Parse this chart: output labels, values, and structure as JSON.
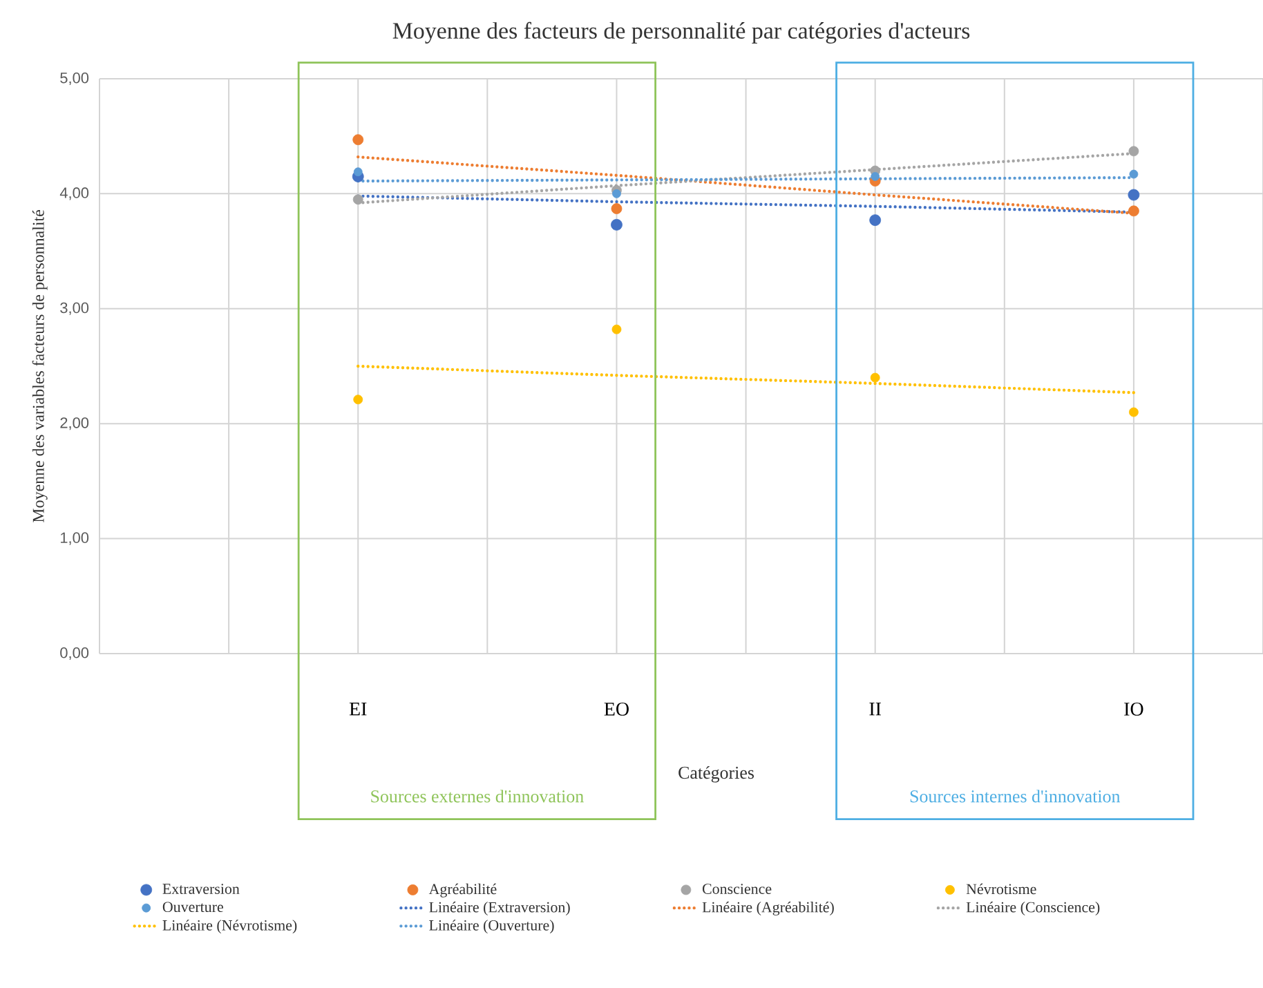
{
  "chart_data": {
    "type": "scatter",
    "title": "Moyenne des facteurs de personnalité par catégories d'acteurs",
    "xlabel": "Catégories",
    "ylabel": "Moyenne des variables facteurs de personnalité",
    "categories": [
      "EI",
      "EO",
      "II",
      "IO"
    ],
    "ylim": [
      0,
      5
    ],
    "yticks": [
      {
        "value": 0,
        "label": "0,00"
      },
      {
        "value": 1,
        "label": "1,00"
      },
      {
        "value": 2,
        "label": "2,00"
      },
      {
        "value": 3,
        "label": "3,00"
      },
      {
        "value": 4,
        "label": "4,00"
      },
      {
        "value": 5,
        "label": "5,00"
      }
    ],
    "grid": true,
    "legend": "bottom",
    "series": [
      {
        "name": "Extraversion",
        "marker": "circle",
        "color": "#4472c4",
        "values": [
          4.15,
          3.73,
          3.77,
          3.99
        ]
      },
      {
        "name": "Agréabilité",
        "marker": "circle",
        "color": "#ed7d31",
        "values": [
          4.47,
          3.87,
          4.11,
          3.85
        ]
      },
      {
        "name": "Conscience",
        "marker": "circle",
        "color": "#a5a5a5",
        "values": [
          3.95,
          4.03,
          4.2,
          4.37
        ]
      },
      {
        "name": "Névrotisme",
        "marker": "circle",
        "color": "#ffc000",
        "values": [
          2.21,
          2.82,
          2.4,
          2.1
        ]
      },
      {
        "name": "Ouverture",
        "marker": "circle",
        "color": "#5b9bd5",
        "values": [
          4.19,
          4.0,
          4.15,
          4.17
        ]
      },
      {
        "name": "Linéaire (Extraversion)",
        "type": "line",
        "line_style": "dotted",
        "color": "#4472c4",
        "values": [
          3.98,
          3.93,
          3.89,
          3.84
        ]
      },
      {
        "name": "Linéaire (Agréabilité)",
        "type": "line",
        "line_style": "dotted",
        "color": "#ed7d31",
        "values": [
          4.32,
          4.16,
          3.99,
          3.83
        ]
      },
      {
        "name": "Linéaire (Conscience)",
        "type": "line",
        "line_style": "dotted",
        "color": "#a5a5a5",
        "values": [
          3.92,
          4.07,
          4.21,
          4.35
        ]
      },
      {
        "name": "Linéaire (Névrotisme)",
        "type": "line",
        "line_style": "dotted",
        "color": "#ffc000",
        "values": [
          2.5,
          2.42,
          2.35,
          2.27
        ]
      },
      {
        "name": "Linéaire (Ouverture)",
        "type": "line",
        "line_style": "dotted",
        "color": "#5b9bd5",
        "values": [
          4.11,
          4.12,
          4.13,
          4.14
        ]
      }
    ],
    "annotations": [
      "Sources externes d'innovation",
      "Sources internes d'innovation"
    ]
  }
}
